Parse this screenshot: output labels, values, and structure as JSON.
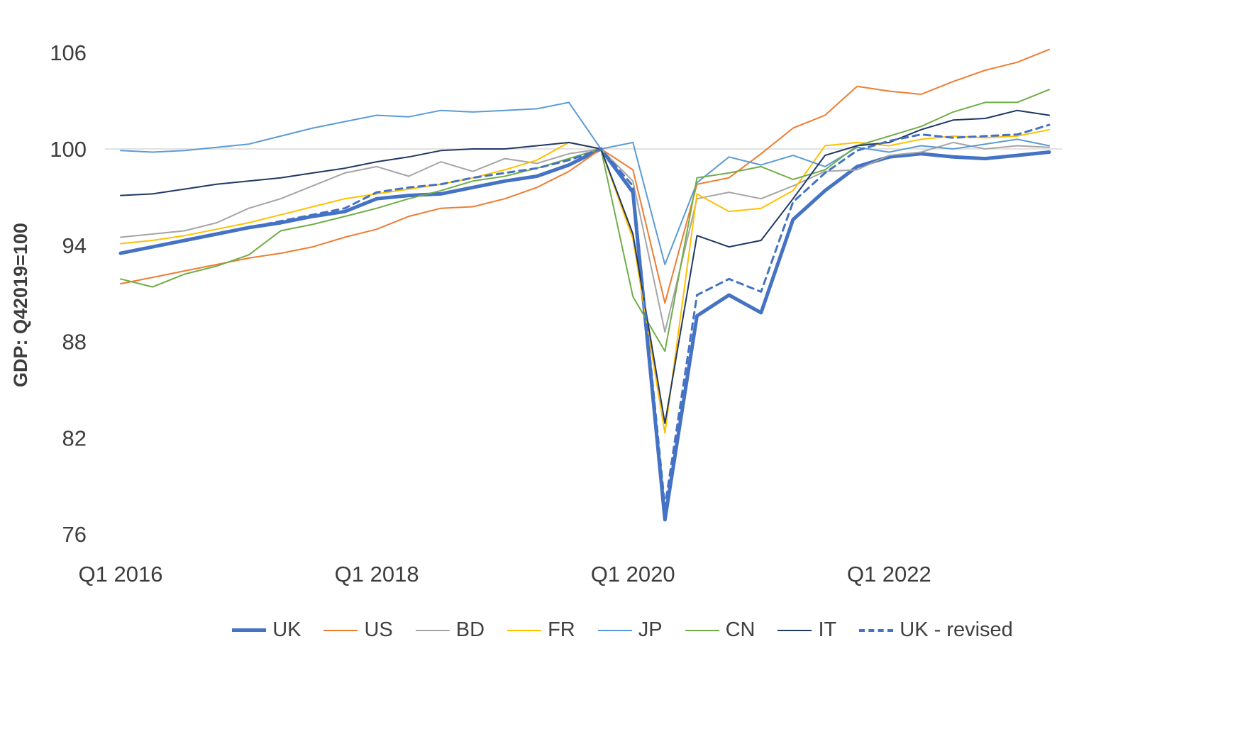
{
  "chart_data": {
    "type": "line",
    "title": "",
    "ylabel": "GDP: Q42019=100",
    "legend_position": "bottom",
    "grid": "single horizontal gridline at 100 only",
    "gridline_values": [
      100
    ],
    "gridline_color": "#d9d9d9",
    "y_ticks": [
      76,
      82,
      88,
      94,
      100,
      106
    ],
    "ylim": [
      75,
      107.5
    ],
    "x_tick_labels": [
      "Q1 2016",
      "Q1 2018",
      "Q1 2020",
      "Q1 2022"
    ],
    "x_tick_indices": [
      0,
      8,
      16,
      24
    ],
    "x": [
      "Q1 2016",
      "Q2 2016",
      "Q3 2016",
      "Q4 2016",
      "Q1 2017",
      "Q2 2017",
      "Q3 2017",
      "Q4 2017",
      "Q1 2018",
      "Q2 2018",
      "Q3 2018",
      "Q4 2018",
      "Q1 2019",
      "Q2 2019",
      "Q3 2019",
      "Q4 2019",
      "Q1 2020",
      "Q2 2020",
      "Q3 2020",
      "Q4 2020",
      "Q1 2021",
      "Q2 2021",
      "Q3 2021",
      "Q4 2021",
      "Q1 2022",
      "Q2 2022",
      "Q3 2022",
      "Q4 2022",
      "Q1 2023",
      "Q2 2023"
    ],
    "series": [
      {
        "name": "UK",
        "color": "#4472C4",
        "width": 5,
        "dash": null,
        "values": [
          93.5,
          93.9,
          94.3,
          94.7,
          95.1,
          95.4,
          95.8,
          96.1,
          96.9,
          97.1,
          97.2,
          97.6,
          98.0,
          98.3,
          99.0,
          100.0,
          97.3,
          76.9,
          89.6,
          90.9,
          89.8,
          95.6,
          97.4,
          98.9,
          99.5,
          99.7,
          99.5,
          99.4,
          99.6,
          99.8
        ]
      },
      {
        "name": "US",
        "color": "#ED7D31",
        "width": 2,
        "dash": null,
        "values": [
          91.6,
          92.0,
          92.4,
          92.8,
          93.2,
          93.5,
          93.9,
          94.5,
          95.0,
          95.8,
          96.3,
          96.4,
          96.9,
          97.6,
          98.6,
          100.0,
          98.7,
          90.4,
          97.8,
          98.2,
          99.7,
          101.3,
          102.1,
          103.9,
          103.6,
          103.4,
          104.2,
          104.9,
          105.4,
          106.2
        ]
      },
      {
        "name": "BD",
        "color": "#A5A5A5",
        "width": 2,
        "dash": null,
        "values": [
          94.5,
          94.7,
          94.9,
          95.4,
          96.3,
          96.9,
          97.7,
          98.5,
          98.9,
          98.3,
          99.2,
          98.6,
          99.4,
          99.1,
          99.7,
          100.0,
          98.0,
          88.6,
          96.9,
          97.3,
          96.9,
          97.7,
          98.6,
          98.7,
          99.6,
          99.8,
          100.4,
          100.0,
          100.2,
          100.1
        ]
      },
      {
        "name": "FR",
        "color": "#FFC000",
        "width": 2,
        "dash": null,
        "values": [
          94.1,
          94.3,
          94.6,
          95.0,
          95.4,
          95.9,
          96.4,
          96.9,
          97.2,
          97.5,
          97.8,
          98.2,
          98.7,
          99.3,
          100.4,
          100.0,
          94.4,
          82.3,
          97.2,
          96.1,
          96.3,
          97.4,
          100.2,
          100.4,
          100.2,
          100.6,
          100.8,
          100.7,
          100.8,
          101.2
        ]
      },
      {
        "name": "JP",
        "color": "#5B9BD5",
        "width": 2,
        "dash": null,
        "values": [
          99.9,
          99.8,
          99.9,
          100.1,
          100.3,
          100.8,
          101.3,
          101.7,
          102.1,
          102.0,
          102.4,
          102.3,
          102.4,
          102.5,
          102.9,
          100.0,
          100.4,
          92.8,
          97.9,
          99.5,
          99.0,
          99.6,
          98.9,
          100.1,
          99.8,
          100.2,
          100.0,
          100.3,
          100.6,
          100.2
        ]
      },
      {
        "name": "CN",
        "color": "#70AD47",
        "width": 2,
        "dash": null,
        "values": [
          91.9,
          91.4,
          92.2,
          92.7,
          93.4,
          94.9,
          95.3,
          95.8,
          96.3,
          96.9,
          97.4,
          98.0,
          98.3,
          98.8,
          99.4,
          100.0,
          90.8,
          87.4,
          98.2,
          98.5,
          98.9,
          98.1,
          98.7,
          100.2,
          100.8,
          101.4,
          102.3,
          102.9,
          102.9,
          103.7
        ]
      },
      {
        "name": "IT",
        "color": "#1F3864",
        "width": 2,
        "dash": null,
        "values": [
          97.1,
          97.2,
          97.5,
          97.8,
          98.0,
          98.2,
          98.5,
          98.8,
          99.2,
          99.5,
          99.9,
          100.0,
          100.0,
          100.2,
          100.4,
          100.0,
          94.7,
          82.9,
          94.6,
          93.9,
          94.3,
          96.9,
          99.6,
          100.2,
          100.4,
          101.2,
          101.8,
          101.9,
          102.4,
          102.1
        ]
      },
      {
        "name": "UK - revised",
        "color": "#4472C4",
        "width": 3,
        "dash": "9 7",
        "values": [
          93.5,
          93.9,
          94.3,
          94.7,
          95.1,
          95.5,
          95.9,
          96.3,
          97.3,
          97.6,
          97.8,
          98.2,
          98.5,
          98.8,
          99.3,
          100.0,
          97.7,
          77.7,
          90.9,
          91.9,
          91.1,
          96.7,
          98.5,
          99.9,
          100.5,
          100.9,
          100.7,
          100.8,
          100.9,
          101.5
        ]
      }
    ],
    "text_color": "#3d3d3d"
  }
}
